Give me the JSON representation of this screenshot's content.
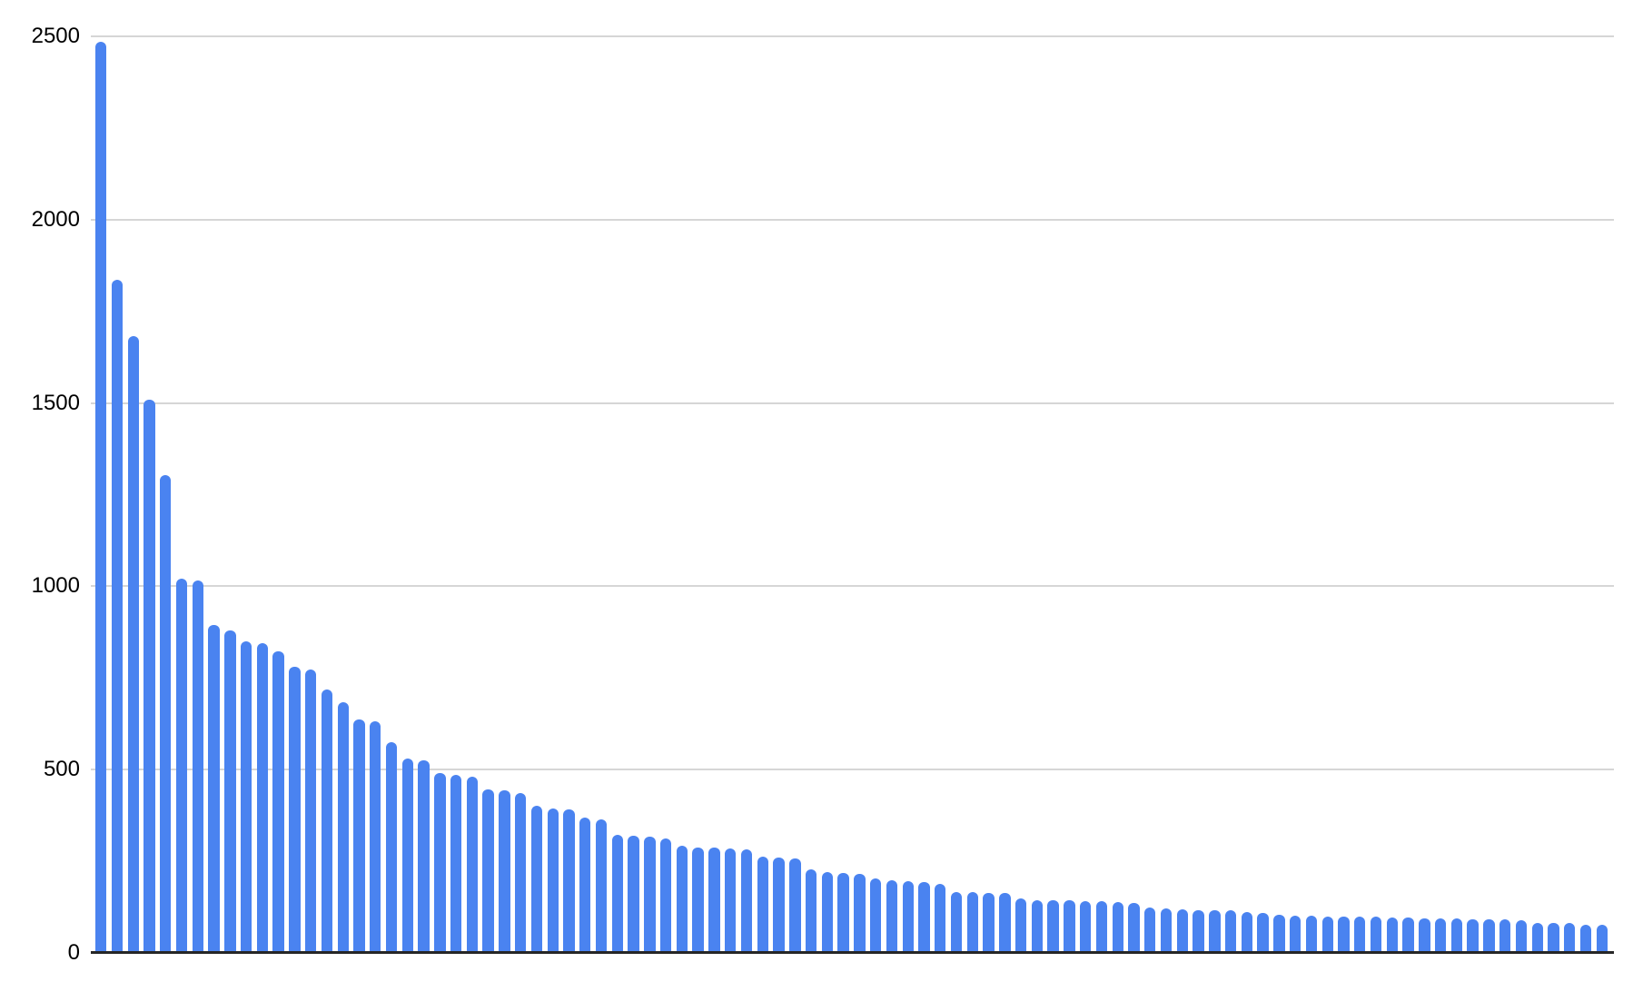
{
  "chart_data": {
    "type": "bar",
    "title": "",
    "xlabel": "",
    "ylabel": "",
    "x_tick_labels": [],
    "y_tick_labels": [
      "0",
      "500",
      "1000",
      "1500",
      "2000",
      "2500"
    ],
    "ylim": [
      0,
      2500
    ],
    "grid": "horizontal",
    "legend_position": "none",
    "bar_color": "#4a83f0",
    "gridline_color": "#d6d6d6",
    "axis_line_color": "#262626",
    "label_color": "#000000",
    "background_color": "#ffffff",
    "values": [
      2485,
      1835,
      1683,
      1510,
      1303,
      1020,
      1015,
      895,
      879,
      849,
      846,
      822,
      781,
      772,
      719,
      683,
      636,
      632,
      574,
      530,
      526,
      491,
      486,
      480,
      445,
      443,
      435,
      401,
      394,
      392,
      369,
      364,
      322,
      319,
      318,
      312,
      292,
      288,
      287,
      285,
      282,
      262,
      260,
      258,
      229,
      220,
      218,
      216,
      204,
      199,
      195,
      193,
      188,
      165,
      165,
      164,
      163,
      148,
      144,
      144,
      143,
      142,
      141,
      138,
      137,
      124,
      122,
      118,
      117,
      117,
      116,
      112,
      110,
      104,
      102,
      101,
      100,
      99,
      99,
      98,
      97,
      96,
      95,
      94,
      93,
      92,
      91,
      91,
      90,
      83,
      82,
      82,
      78,
      77
    ]
  }
}
